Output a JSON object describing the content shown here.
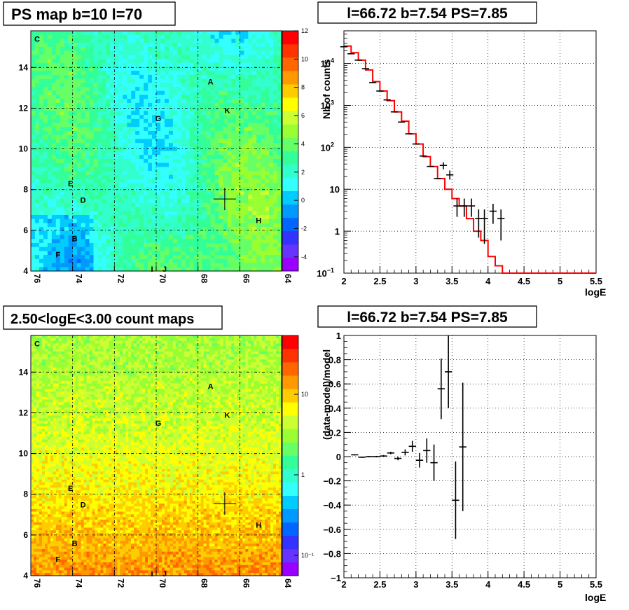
{
  "panels": {
    "ps_map_title": "PS map b=10 l=70",
    "count_map_title": "2.50<logE<3.00 count maps",
    "spectrum_title": "l=66.72 b=7.54 PS=7.85",
    "residual_title": "l=66.72 b=7.54 PS=7.85"
  },
  "colors": {
    "model_line": "#ff0000",
    "data_marker": "#000000",
    "grid": "#000000"
  },
  "chart_data": [
    {
      "type": "heatmap",
      "title": "PS map b=10 l=70",
      "x_range": [
        76,
        64
      ],
      "y_range": [
        4,
        15.8
      ],
      "xticks": [
        "76",
        "74",
        "72",
        "70",
        "68",
        "66",
        "64"
      ],
      "yticks": [
        "4",
        "6",
        "8",
        "10",
        "12",
        "14"
      ],
      "colorbar": {
        "min": -5,
        "max": 12,
        "ticks": [
          "12",
          "10",
          "8",
          "6",
          "4",
          "2",
          "0",
          "-2",
          "-4"
        ]
      },
      "sources": [
        {
          "label": "C",
          "l": 75.7,
          "b": 15.4
        },
        {
          "label": "A",
          "l": 67.4,
          "b": 13.3
        },
        {
          "label": "K",
          "l": 66.6,
          "b": 11.9
        },
        {
          "label": "G",
          "l": 69.9,
          "b": 11.5
        },
        {
          "label": "E",
          "l": 74.1,
          "b": 8.3
        },
        {
          "label": "D",
          "l": 73.5,
          "b": 7.5
        },
        {
          "label": "H",
          "l": 65.1,
          "b": 6.5
        },
        {
          "label": "B",
          "l": 73.9,
          "b": 5.6
        },
        {
          "label": "F",
          "l": 74.7,
          "b": 4.8
        },
        {
          "label": "I",
          "l": 70.2,
          "b": 4.1
        },
        {
          "label": "J",
          "l": 69.6,
          "b": 4.1
        }
      ],
      "marker": {
        "l": 66.72,
        "b": 7.54
      }
    },
    {
      "type": "heatmap",
      "title": "2.50<logE<3.00 count maps",
      "x_range": [
        76,
        64
      ],
      "y_range": [
        4,
        15.8
      ],
      "xticks": [
        "76",
        "74",
        "72",
        "70",
        "68",
        "66",
        "64"
      ],
      "yticks": [
        "4",
        "6",
        "8",
        "10",
        "12",
        "14"
      ],
      "colorbar": {
        "scale": "log",
        "ticks": [
          "10",
          "1",
          "10⁻¹"
        ]
      },
      "sources": [
        {
          "label": "C",
          "l": 75.7,
          "b": 15.4
        },
        {
          "label": "A",
          "l": 67.4,
          "b": 13.3
        },
        {
          "label": "K",
          "l": 66.6,
          "b": 11.9
        },
        {
          "label": "G",
          "l": 69.9,
          "b": 11.5
        },
        {
          "label": "E",
          "l": 74.1,
          "b": 8.3
        },
        {
          "label": "D",
          "l": 73.5,
          "b": 7.5
        },
        {
          "label": "H",
          "l": 65.1,
          "b": 6.5
        },
        {
          "label": "B",
          "l": 73.9,
          "b": 5.6
        },
        {
          "label": "F",
          "l": 74.7,
          "b": 4.8
        },
        {
          "label": "I",
          "l": 70.2,
          "b": 4.1
        },
        {
          "label": "J",
          "l": 69.6,
          "b": 4.1
        }
      ],
      "marker": {
        "l": 66.72,
        "b": 7.54
      }
    },
    {
      "type": "line",
      "title": "l=66.72 b=7.54 PS=7.85",
      "xlabel": "logE",
      "ylabel": "Nb of counts",
      "xlim": [
        2,
        5.5
      ],
      "ylim": [
        0.1,
        60000
      ],
      "yscale": "log",
      "grid": true,
      "xticks": [
        "2",
        "2.5",
        "3",
        "3.5",
        "4",
        "4.5",
        "5",
        "5.5"
      ],
      "yticks": [
        {
          "v": 0.1,
          "base": "10",
          "exp": "−1"
        },
        {
          "v": 1,
          "base": "1",
          "exp": ""
        },
        {
          "v": 10,
          "base": "10",
          "exp": ""
        },
        {
          "v": 100,
          "base": "10",
          "exp": "2"
        },
        {
          "v": 1000,
          "base": "10",
          "exp": "3"
        },
        {
          "v": 10000,
          "base": "10",
          "exp": "4"
        }
      ],
      "model_step": {
        "edges": [
          2.0,
          2.1,
          2.2,
          2.3,
          2.4,
          2.5,
          2.6,
          2.7,
          2.8,
          2.9,
          3.0,
          3.1,
          3.2,
          3.3,
          3.4,
          3.5,
          3.6,
          3.7,
          3.8,
          3.9,
          4.0,
          4.1,
          4.2,
          5.5
        ],
        "values": [
          26000,
          18000,
          12000,
          7000,
          3700,
          2200,
          1300,
          700,
          420,
          210,
          120,
          60,
          35,
          18,
          10,
          6,
          4,
          2,
          1,
          0.6,
          0.25,
          0.15,
          0.1
        ]
      },
      "data_points": [
        {
          "x": 2.0,
          "y": 25000,
          "xerr": 0.05
        },
        {
          "x": 2.1,
          "y": 17000,
          "xerr": 0.05
        },
        {
          "x": 2.2,
          "y": 12000,
          "xerr": 0.05
        },
        {
          "x": 2.3,
          "y": 7500,
          "xerr": 0.05
        },
        {
          "x": 2.4,
          "y": 3500,
          "xerr": 0.05
        },
        {
          "x": 2.5,
          "y": 2200,
          "xerr": 0.05
        },
        {
          "x": 2.6,
          "y": 1350,
          "xerr": 0.05
        },
        {
          "x": 2.7,
          "y": 700,
          "xerr": 0.05
        },
        {
          "x": 2.8,
          "y": 400,
          "xerr": 0.05
        },
        {
          "x": 2.9,
          "y": 210,
          "xerr": 0.05
        },
        {
          "x": 3.0,
          "y": 120,
          "xerr": 0.05
        },
        {
          "x": 3.1,
          "y": 62,
          "xerr": 0.05
        },
        {
          "x": 3.2,
          "y": 35,
          "xerr": 0.05
        },
        {
          "x": 3.3,
          "y": 18,
          "xerr": 0.05
        },
        {
          "x": 3.38,
          "y": 37,
          "xerr": 0.05,
          "ylo": 30,
          "yhi": 44
        },
        {
          "x": 3.47,
          "y": 22,
          "xerr": 0.05,
          "ylo": 17,
          "yhi": 28
        },
        {
          "x": 3.57,
          "y": 4,
          "xerr": 0.05,
          "ylo": 2.2,
          "yhi": 6
        },
        {
          "x": 3.67,
          "y": 4,
          "xerr": 0.05,
          "ylo": 2.2,
          "yhi": 6
        },
        {
          "x": 3.77,
          "y": 4,
          "xerr": 0.05,
          "ylo": 2.2,
          "yhi": 6
        },
        {
          "x": 3.87,
          "y": 2,
          "xerr": 0.05,
          "ylo": 0.7,
          "yhi": 3.3
        },
        {
          "x": 3.95,
          "y": 2,
          "xerr": 0.05,
          "ylo": 0.5,
          "yhi": 3.3
        },
        {
          "x": 4.07,
          "y": 3,
          "xerr": 0.05,
          "ylo": 1.5,
          "yhi": 4.5
        },
        {
          "x": 4.18,
          "y": 2,
          "xerr": 0.05,
          "ylo": 0.6,
          "yhi": 3.3
        }
      ]
    },
    {
      "type": "scatter",
      "title": "l=66.72 b=7.54 PS=7.85",
      "xlabel": "logE",
      "ylabel": "(data-model)/model",
      "xlim": [
        2,
        5.5
      ],
      "ylim": [
        -1,
        1
      ],
      "grid": true,
      "xticks": [
        "2",
        "2.5",
        "3",
        "3.5",
        "4",
        "4.5",
        "5",
        "5.5"
      ],
      "yticks": [
        "1",
        "0.8",
        "0.6",
        "0.4",
        "0.2",
        "0",
        "−0.2",
        "−0.4",
        "−0.6",
        "−0.8",
        "−1"
      ],
      "points": [
        {
          "x": 2.15,
          "y": 0.015,
          "xerr": 0.05,
          "yerr": 0.005
        },
        {
          "x": 2.25,
          "y": -0.005,
          "xerr": 0.05,
          "yerr": 0.005
        },
        {
          "x": 2.35,
          "y": 0.0,
          "xerr": 0.05,
          "yerr": 0.005
        },
        {
          "x": 2.45,
          "y": 0.0,
          "xerr": 0.05,
          "yerr": 0.006
        },
        {
          "x": 2.55,
          "y": 0.005,
          "xerr": 0.05,
          "yerr": 0.008
        },
        {
          "x": 2.65,
          "y": 0.03,
          "xerr": 0.05,
          "yerr": 0.01
        },
        {
          "x": 2.75,
          "y": -0.015,
          "xerr": 0.05,
          "yerr": 0.015
        },
        {
          "x": 2.85,
          "y": 0.035,
          "xerr": 0.05,
          "yerr": 0.025
        },
        {
          "x": 2.95,
          "y": 0.085,
          "xerr": 0.05,
          "yerr": 0.045
        },
        {
          "x": 3.05,
          "y": -0.03,
          "xerr": 0.05,
          "yerr": 0.06
        },
        {
          "x": 3.15,
          "y": 0.05,
          "xerr": 0.05,
          "yerr": 0.1
        },
        {
          "x": 3.25,
          "y": -0.05,
          "xerr": 0.05,
          "yerr": 0.15
        },
        {
          "x": 3.35,
          "y": 0.56,
          "xerr": 0.05,
          "yerr": 0.25
        },
        {
          "x": 3.45,
          "y": 0.7,
          "xerr": 0.05,
          "yerr": 0.3
        },
        {
          "x": 3.55,
          "y": -0.36,
          "xerr": 0.05,
          "yerr": 0.32
        },
        {
          "x": 3.65,
          "y": 0.08,
          "xerr": 0.05,
          "yerr": 0.53
        }
      ]
    }
  ]
}
